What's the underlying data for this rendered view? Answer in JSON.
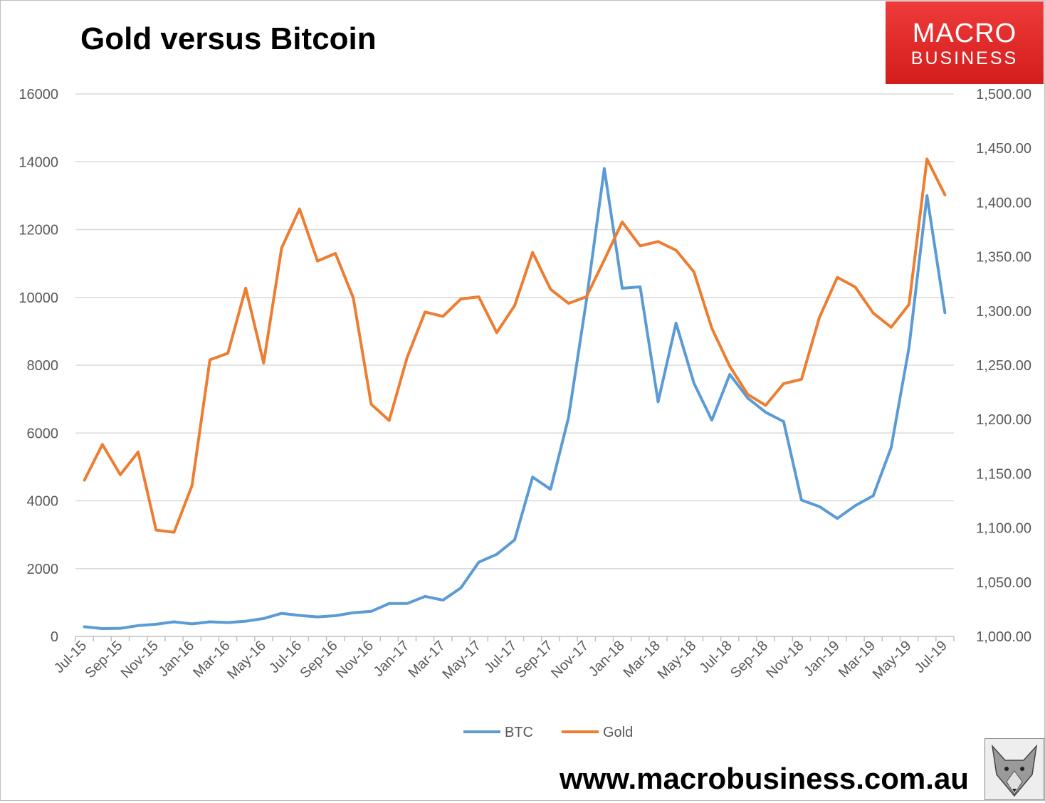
{
  "title": "Gold versus Bitcoin",
  "logo": {
    "line1": "MACRO",
    "line2": "BUSINESS"
  },
  "website": "www.macrobusiness.com.au",
  "colors": {
    "btc": "#5b9bd5",
    "gold": "#ed7d31",
    "grid": "#d9d9d9",
    "logo": "#e62b2b"
  },
  "chart_data": {
    "type": "line",
    "title": "Gold versus Bitcoin",
    "x": [
      "Jul-15",
      "Aug-15",
      "Sep-15",
      "Oct-15",
      "Nov-15",
      "Dec-15",
      "Jan-16",
      "Feb-16",
      "Mar-16",
      "Apr-16",
      "May-16",
      "Jun-16",
      "Jul-16",
      "Aug-16",
      "Sep-16",
      "Oct-16",
      "Nov-16",
      "Dec-16",
      "Jan-17",
      "Feb-17",
      "Mar-17",
      "Apr-17",
      "May-17",
      "Jun-17",
      "Jul-17",
      "Aug-17",
      "Sep-17",
      "Oct-17",
      "Nov-17",
      "Dec-17",
      "Jan-18",
      "Feb-18",
      "Mar-18",
      "Apr-18",
      "May-18",
      "Jun-18",
      "Jul-18",
      "Aug-18",
      "Sep-18",
      "Oct-18",
      "Nov-18",
      "Dec-18",
      "Jan-19",
      "Feb-19",
      "Mar-19",
      "Apr-19",
      "May-19",
      "Jun-19",
      "Jul-19"
    ],
    "x_tick_labels": [
      "Jul-15",
      "Sep-15",
      "Nov-15",
      "Jan-16",
      "Mar-16",
      "May-16",
      "Jul-16",
      "Sep-16",
      "Nov-16",
      "Jan-17",
      "Mar-17",
      "May-17",
      "Jul-17",
      "Sep-17",
      "Nov-17",
      "Jan-18",
      "Mar-18",
      "May-18",
      "Jul-18",
      "Sep-18",
      "Nov-18",
      "Jan-19",
      "Mar-19",
      "May-19",
      "Jul-19"
    ],
    "series": [
      {
        "name": "BTC",
        "axis": "left",
        "color": "#5b9bd5",
        "values": [
          285,
          230,
          240,
          320,
          360,
          430,
          370,
          430,
          410,
          450,
          530,
          680,
          620,
          575,
          610,
          700,
          740,
          970,
          970,
          1180,
          1070,
          1430,
          2190,
          2420,
          2850,
          4700,
          4340,
          6450,
          9900,
          13800,
          10270,
          10310,
          6920,
          9240,
          7470,
          6380,
          7730,
          7030,
          6610,
          6340,
          4020,
          3830,
          3480,
          3860,
          4150,
          5570,
          8530,
          13000,
          9550
        ]
      },
      {
        "name": "Gold",
        "axis": "right",
        "color": "#ed7d31",
        "values": [
          1144,
          1177,
          1149,
          1170,
          1098,
          1096,
          1139,
          1255,
          1261,
          1321,
          1252,
          1358,
          1394,
          1346,
          1353,
          1312,
          1214,
          1199,
          1257,
          1299,
          1295,
          1311,
          1313,
          1280,
          1305,
          1354,
          1320,
          1307,
          1313,
          1347,
          1382,
          1360,
          1364,
          1356,
          1336,
          1284,
          1249,
          1223,
          1213,
          1233,
          1237,
          1294,
          1331,
          1322,
          1298,
          1285,
          1306,
          1440,
          1407
        ]
      }
    ],
    "y_left": {
      "ylim": [
        0,
        16000
      ],
      "ticks": [
        "0",
        "2000",
        "4000",
        "6000",
        "8000",
        "10000",
        "12000",
        "14000",
        "16000"
      ]
    },
    "y_right": {
      "ylim": [
        1000,
        1500
      ],
      "ticks": [
        "1,000.00",
        "1,050.00",
        "1,100.00",
        "1,150.00",
        "1,200.00",
        "1,250.00",
        "1,300.00",
        "1,350.00",
        "1,400.00",
        "1,450.00",
        "1,500.00"
      ]
    },
    "grid": true,
    "legend": {
      "position": "bottom",
      "entries": [
        "BTC",
        "Gold"
      ]
    }
  }
}
